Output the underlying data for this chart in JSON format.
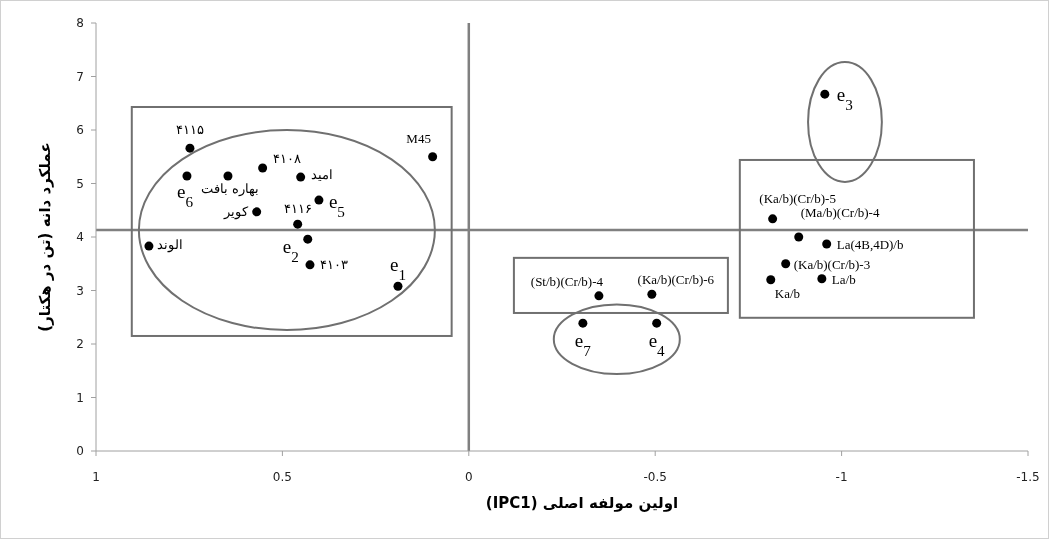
{
  "chart_data": {
    "type": "scatter",
    "xlabel": "اولین مولفه اصلی (**IPC1**)",
    "ylabel": "عملکرد دانه (تن در هکتار)",
    "xlim": [
      1,
      -1.5
    ],
    "xticks": [
      1,
      0.5,
      0,
      -0.5,
      -1,
      -1.5
    ],
    "ylim": [
      0,
      8
    ],
    "yticks": [
      0,
      1,
      2,
      3,
      4,
      5,
      6,
      7,
      8
    ],
    "marker": "circle",
    "series": [
      {
        "color": "#000000",
        "x": [
          0.748,
          0.756,
          0.646,
          0.553,
          0.451,
          0.402,
          0.569,
          0.459,
          0.432,
          0.858,
          0.426,
          0.19,
          0.097,
          -0.955,
          -0.815,
          -0.885,
          -0.96,
          -0.85,
          -0.81,
          -0.947,
          -0.349,
          -0.491,
          -0.306,
          -0.504
        ],
        "values": [
          5.66,
          5.14,
          5.14,
          5.29,
          5.12,
          4.69,
          4.47,
          4.24,
          3.96,
          3.83,
          3.48,
          3.08,
          5.5,
          6.67,
          4.34,
          4.0,
          3.87,
          3.5,
          3.2,
          3.22,
          2.9,
          2.93,
          2.39,
          2.39
        ]
      }
    ],
    "ref_lines": [
      {
        "axis": "x",
        "value": 0,
        "color": "#808080"
      },
      {
        "axis": "y",
        "value": 4.13,
        "color": "#808080"
      }
    ],
    "annotations": [
      {
        "text": "۴۱۱۵",
        "x": 0.748,
        "y": 5.66
      },
      {
        "text": "e$_{6}$",
        "x": 0.756,
        "y": 5.14
      },
      {
        "text": "بهاره بافت",
        "x": 0.646,
        "y": 5.14
      },
      {
        "text": "۴۱۰۸",
        "x": 0.553,
        "y": 5.29
      },
      {
        "text": "امید",
        "x": 0.451,
        "y": 5.12
      },
      {
        "text": "e$_{5}$",
        "x": 0.402,
        "y": 4.69
      },
      {
        "text": "کویر",
        "x": 0.569,
        "y": 4.47
      },
      {
        "text": "۴۱۱۶",
        "x": 0.459,
        "y": 4.24
      },
      {
        "text": "e$_{2}$",
        "x": 0.432,
        "y": 3.96
      },
      {
        "text": "الوند",
        "x": 0.858,
        "y": 3.83
      },
      {
        "text": "۴۱۰۳",
        "x": 0.426,
        "y": 3.48
      },
      {
        "text": "e$_{1}$",
        "x": 0.19,
        "y": 3.08
      },
      {
        "text": "M45",
        "x": 0.097,
        "y": 5.5
      },
      {
        "text": "e$_{3}$",
        "x": -0.955,
        "y": 6.67
      },
      {
        "text": "(Ka/b)(Cr/b)-5",
        "x": -0.815,
        "y": 4.34
      },
      {
        "text": "(Ma/b)(Cr/b)-4",
        "x": -0.885,
        "y": 4.0
      },
      {
        "text": "La(4B,4D)/b",
        "x": -0.96,
        "y": 3.87
      },
      {
        "text": "(Ka/b)(Cr/b)-3",
        "x": -0.85,
        "y": 3.5
      },
      {
        "text": "Ka/b",
        "x": -0.81,
        "y": 3.2
      },
      {
        "text": "La/b",
        "x": -0.947,
        "y": 3.22
      },
      {
        "text": "(St/b)(Cr/b)-4",
        "x": -0.349,
        "y": 2.9
      },
      {
        "text": "(Ka/b)(Cr/b)-6",
        "x": -0.491,
        "y": 2.93
      },
      {
        "text": "e$_{7}$",
        "x": -0.306,
        "y": 2.39
      },
      {
        "text": "e$_{4}$",
        "x": -0.504,
        "y": 2.39
      }
    ]
  }
}
